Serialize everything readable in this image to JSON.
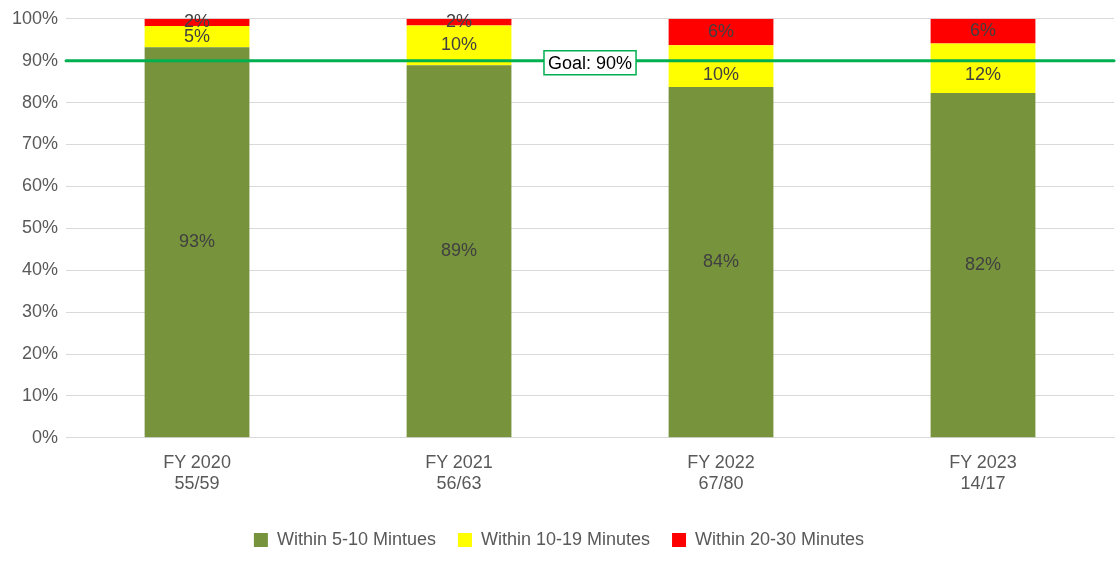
{
  "chart_data": {
    "type": "bar",
    "stacked": true,
    "categories": [
      "FY 2020\n55/59",
      "FY 2021\n56/63",
      "FY 2022\n67/80",
      "FY 2023\n14/17"
    ],
    "series": [
      {
        "name": "Within 5-10 Mintues",
        "color": "#77933c",
        "values": [
          93.2,
          88.9,
          83.7,
          82.3
        ],
        "value_labels": [
          "93%",
          "89%",
          "84%",
          "82%"
        ]
      },
      {
        "name": "Within 10-19 Minutes",
        "color": "#ffff00",
        "values": [
          5.1,
          9.5,
          10,
          11.8
        ],
        "value_labels": [
          "5%",
          "10%",
          "10%",
          "12%"
        ]
      },
      {
        "name": "Within 20-30 Minutes",
        "color": "#ff0000",
        "values": [
          1.7,
          1.6,
          6.3,
          5.9
        ],
        "value_labels": [
          "2%",
          "2%",
          "6%",
          "6%"
        ]
      }
    ],
    "ylim": [
      0,
      100
    ],
    "yticks": [
      {
        "value": 0,
        "label": "0%"
      },
      {
        "value": 10,
        "label": "10%"
      },
      {
        "value": 20,
        "label": "20%"
      },
      {
        "value": 30,
        "label": "30%"
      },
      {
        "value": 40,
        "label": "40%"
      },
      {
        "value": 50,
        "label": "50%"
      },
      {
        "value": 60,
        "label": "60%"
      },
      {
        "value": 70,
        "label": "70%"
      },
      {
        "value": 80,
        "label": "80%"
      },
      {
        "value": 90,
        "label": "90%"
      },
      {
        "value": 100,
        "label": "100%"
      }
    ],
    "grid": "y",
    "legend": "bottom",
    "ref_lines": [
      {
        "axis": "y",
        "value": 90,
        "label": "Goal: 90%",
        "color": "#00b050"
      }
    ]
  }
}
